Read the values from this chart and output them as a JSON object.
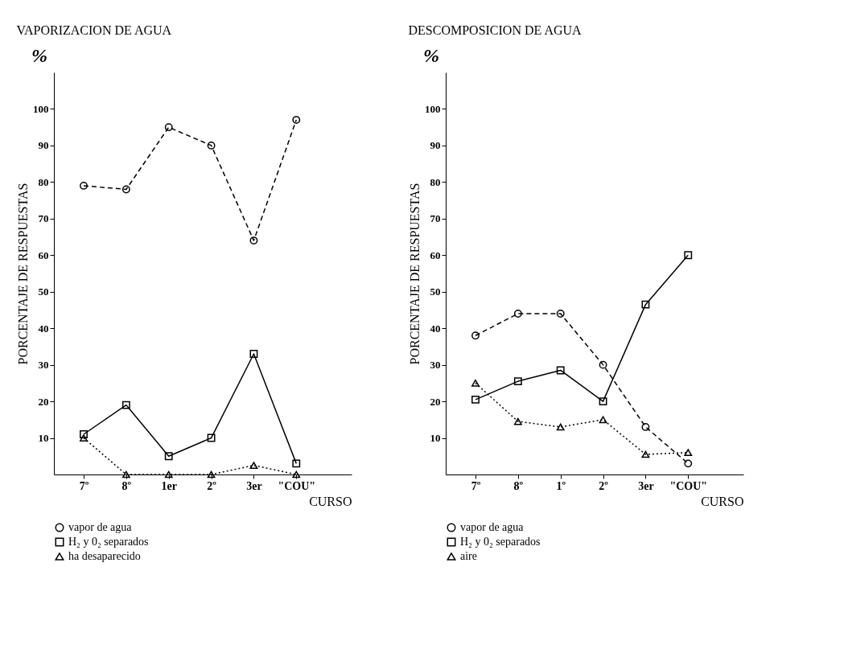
{
  "chart_data": [
    {
      "type": "line",
      "title": "VAPORIZACION DE AGUA",
      "xlabel": "CURSO",
      "ylabel": "PORCENTAJE DE RESPUESTAS",
      "annotations": [
        "%"
      ],
      "categories": [
        "7º",
        "8º",
        "1er",
        "2º",
        "3er",
        "\"COU\""
      ],
      "series": [
        {
          "name": "vapor de agua",
          "color": "#000000",
          "marker": "circle",
          "line_style": "dashed",
          "values": [
            79,
            78,
            95,
            90,
            64,
            97
          ]
        },
        {
          "name": "H₂ y 0₂ separados",
          "color": "#000000",
          "marker": "square",
          "line_style": "solid",
          "values": [
            11,
            19,
            5,
            10,
            33,
            3
          ]
        },
        {
          "name": "ha desaparecido",
          "color": "#000000",
          "marker": "triangle",
          "line_style": "dotted",
          "values": [
            10,
            0,
            0,
            0,
            2.5,
            0
          ]
        }
      ],
      "ylim": [
        0,
        110
      ],
      "yticks": [
        10,
        20,
        30,
        40,
        50,
        60,
        70,
        80,
        90,
        100
      ],
      "grid": false,
      "legend": "bottom"
    },
    {
      "type": "line",
      "title": "DESCOMPOSICION DE AGUA",
      "xlabel": "CURSO",
      "ylabel": "PORCENTAJE DE RESPUESTAS",
      "annotations": [
        "%"
      ],
      "categories": [
        "7º",
        "8º",
        "1º",
        "2º",
        "3er",
        "\"COU\""
      ],
      "series": [
        {
          "name": "vapor de agua",
          "color": "#000000",
          "marker": "circle",
          "line_style": "dashed",
          "values": [
            38,
            44,
            44,
            30,
            13,
            3
          ]
        },
        {
          "name": "H₂ y 0₂ separados",
          "color": "#000000",
          "marker": "square",
          "line_style": "solid",
          "values": [
            20.5,
            25.5,
            28.5,
            20,
            46.5,
            60
          ]
        },
        {
          "name": "aire",
          "color": "#000000",
          "marker": "triangle",
          "line_style": "dotted",
          "values": [
            25,
            14.5,
            13,
            15,
            5.5,
            6
          ]
        }
      ],
      "ylim": [
        0,
        110
      ],
      "yticks": [
        10,
        20,
        30,
        40,
        50,
        60,
        70,
        80,
        90,
        100
      ],
      "grid": false,
      "legend": "bottom"
    }
  ]
}
